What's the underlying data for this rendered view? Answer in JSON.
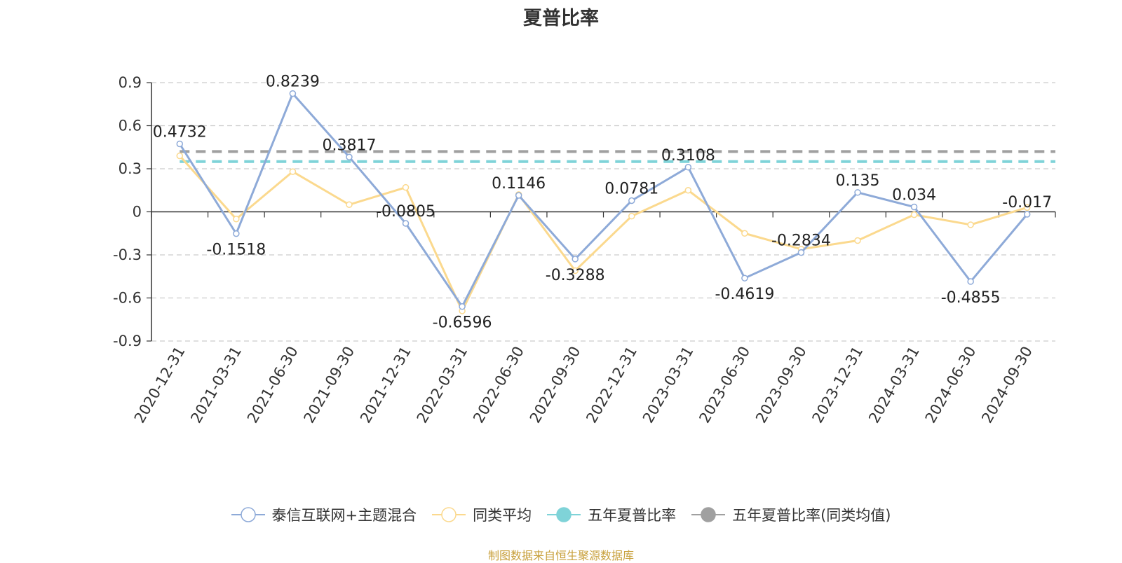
{
  "chart_data": {
    "type": "line",
    "title": "夏普比率",
    "categories": [
      "2020-12-31",
      "2021-03-31",
      "2021-06-30",
      "2021-09-30",
      "2021-12-31",
      "2022-03-31",
      "2022-06-30",
      "2022-09-30",
      "2022-12-31",
      "2023-03-31",
      "2023-06-30",
      "2023-09-30",
      "2023-12-31",
      "2024-03-31",
      "2024-06-30",
      "2024-09-30"
    ],
    "ylim": [
      -0.9,
      0.9
    ],
    "yticks": [
      "0.9",
      "0.6",
      "0.3",
      "0",
      "-0.3",
      "-0.6",
      "-0.9"
    ],
    "ytick_values": [
      0.9,
      0.6,
      0.3,
      0,
      -0.3,
      -0.6,
      -0.9
    ],
    "grid": true,
    "legend_position": "bottom",
    "series": [
      {
        "name": "泰信互联网+主题混合",
        "color": "#8eaad8",
        "values": [
          0.4732,
          -0.1518,
          0.8239,
          0.3817,
          -0.0805,
          -0.6596,
          0.1146,
          -0.3288,
          0.0781,
          0.3108,
          -0.4619,
          -0.2834,
          0.135,
          0.034,
          -0.4855,
          -0.017
        ],
        "labels": [
          "0.4732",
          "-0.1518",
          "0.8239",
          "0.3817",
          "-0.0805",
          "-0.6596",
          "0.1146",
          "-0.3288",
          "0.0781",
          "0.3108",
          "-0.4619",
          "-0.2834",
          "0.135",
          "0.034",
          "-0.4855",
          "-0.017"
        ]
      },
      {
        "name": "同类平均",
        "color": "#fbd98e",
        "values": [
          0.39,
          -0.05,
          0.28,
          0.05,
          0.17,
          -0.69,
          0.12,
          -0.41,
          -0.03,
          0.15,
          -0.15,
          -0.26,
          -0.2,
          -0.02,
          -0.09,
          0.03
        ]
      },
      {
        "name": "五年夏普比率",
        "color": "#7fd3d8",
        "type": "reference",
        "value": 0.35
      },
      {
        "name": "五年夏普比率(同类均值)",
        "color": "#a0a0a0",
        "type": "reference",
        "value": 0.42
      }
    ]
  },
  "source_note": "制图数据来自恒生聚源数据库"
}
